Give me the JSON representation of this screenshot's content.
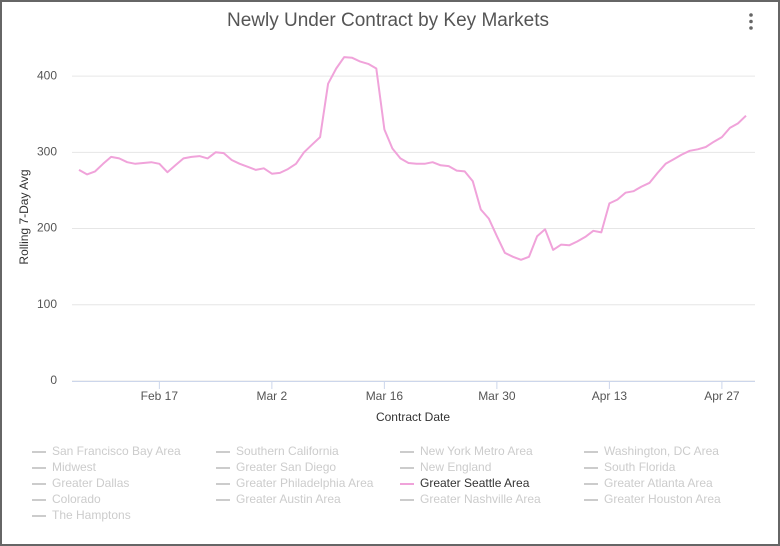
{
  "chart_data": {
    "type": "line",
    "title": "Newly Under Contract by Key Markets",
    "x_label": "Contract Date",
    "y_label": "Rolling 7-Day Avg",
    "categories": [
      "Feb 7",
      "Feb 8",
      "Feb 9",
      "Feb 10",
      "Feb 11",
      "Feb 12",
      "Feb 13",
      "Feb 14",
      "Feb 15",
      "Feb 16",
      "Feb 17",
      "Feb 18",
      "Feb 19",
      "Feb 20",
      "Feb 21",
      "Feb 22",
      "Feb 23",
      "Feb 24",
      "Feb 25",
      "Feb 26",
      "Feb 27",
      "Feb 28",
      "Feb 29",
      "Mar 1",
      "Mar 2",
      "Mar 3",
      "Mar 4",
      "Mar 5",
      "Mar 6",
      "Mar 7",
      "Mar 8",
      "Mar 9",
      "Mar 10",
      "Mar 11",
      "Mar 12",
      "Mar 13",
      "Mar 14",
      "Mar 15",
      "Mar 16",
      "Mar 17",
      "Mar 18",
      "Mar 19",
      "Mar 20",
      "Mar 21",
      "Mar 22",
      "Mar 23",
      "Mar 24",
      "Mar 25",
      "Mar 26",
      "Mar 27",
      "Mar 28",
      "Mar 29",
      "Mar 30",
      "Mar 31",
      "Apr 1",
      "Apr 2",
      "Apr 3",
      "Apr 4",
      "Apr 5",
      "Apr 6",
      "Apr 7",
      "Apr 8",
      "Apr 9",
      "Apr 10",
      "Apr 11",
      "Apr 12",
      "Apr 13",
      "Apr 14",
      "Apr 15",
      "Apr 16",
      "Apr 17",
      "Apr 18",
      "Apr 19",
      "Apr 20",
      "Apr 21",
      "Apr 22",
      "Apr 23",
      "Apr 24",
      "Apr 25",
      "Apr 26",
      "Apr 27",
      "Apr 28",
      "Apr 29",
      "Apr 30"
    ],
    "xticks": [
      "Feb 17",
      "Mar 2",
      "Mar 16",
      "Mar 30",
      "Apr 13",
      "Apr 27"
    ],
    "ylim": [
      0,
      450
    ],
    "yticks": [
      0,
      100,
      200,
      300,
      400
    ],
    "grid": true,
    "series": [
      {
        "name": "San Francisco Bay Area",
        "visible": false
      },
      {
        "name": "Southern California",
        "visible": false
      },
      {
        "name": "New York Metro Area",
        "visible": false
      },
      {
        "name": "Washington, DC Area",
        "visible": false
      },
      {
        "name": "Midwest",
        "visible": false
      },
      {
        "name": "Greater San Diego",
        "visible": false
      },
      {
        "name": "New England",
        "visible": false
      },
      {
        "name": "South Florida",
        "visible": false
      },
      {
        "name": "Greater Dallas",
        "visible": false
      },
      {
        "name": "Greater Philadelphia Area",
        "visible": false
      },
      {
        "name": "Greater Seattle Area",
        "visible": true,
        "color": "#f0a3da",
        "values": [
          277,
          271,
          275,
          285,
          294,
          292,
          287,
          285,
          286,
          287,
          285,
          274,
          283,
          292,
          294,
          295,
          292,
          300,
          299,
          290,
          285,
          281,
          277,
          279,
          272,
          273,
          278,
          285,
          300,
          310,
          320,
          390,
          410,
          425,
          424,
          419,
          416,
          410,
          330,
          305,
          292,
          286,
          285,
          285,
          287,
          283,
          282,
          276,
          275,
          262,
          225,
          213,
          190,
          168,
          163,
          159,
          163,
          190,
          199,
          172,
          179,
          178,
          183,
          189,
          197,
          195,
          233,
          238,
          247,
          249,
          255,
          260,
          273,
          285,
          291,
          297,
          302,
          304,
          307,
          314,
          320,
          332,
          338,
          348
        ]
      },
      {
        "name": "Greater Atlanta Area",
        "visible": false
      },
      {
        "name": "Colorado",
        "visible": false
      },
      {
        "name": "Greater Austin Area",
        "visible": false
      },
      {
        "name": "Greater Nashville Area",
        "visible": false
      },
      {
        "name": "Greater Houston Area",
        "visible": false
      },
      {
        "name": "The Hamptons",
        "visible": false
      }
    ]
  }
}
